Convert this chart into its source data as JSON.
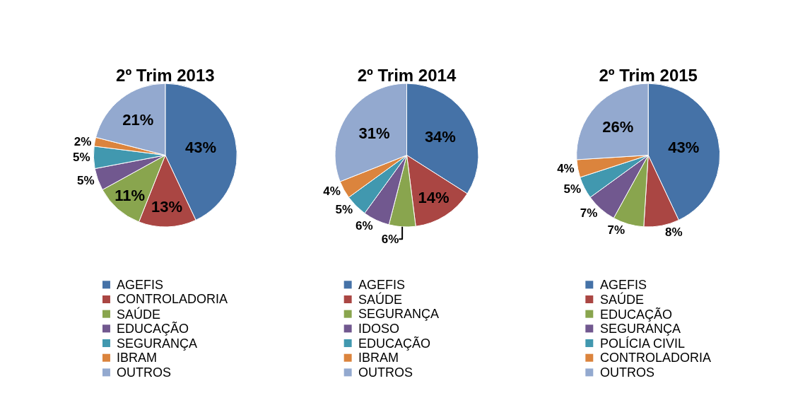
{
  "chart_data": [
    {
      "type": "pie",
      "title": "2º Trim 2013",
      "categories": [
        "AGEFIS",
        "CONTROLADORIA",
        "SAÚDE",
        "EDUCAÇÃO",
        "SEGURANÇA",
        "IBRAM",
        "OUTROS"
      ],
      "values": [
        43,
        13,
        11,
        5,
        5,
        2,
        21
      ],
      "value_labels": [
        "43%",
        "13%",
        "11%",
        "5%",
        "5%",
        "2%",
        "21%"
      ],
      "colors": [
        "#4572a7",
        "#aa4643",
        "#89a54e",
        "#71588f",
        "#4198af",
        "#db843d",
        "#93a9cf"
      ],
      "legend": "bottom"
    },
    {
      "type": "pie",
      "title": "2º Trim 2014",
      "categories": [
        "AGEFIS",
        "SAÚDE",
        "SEGURANÇA",
        "IDOSO",
        "EDUCAÇÃO",
        "IBRAM",
        "OUTROS"
      ],
      "values": [
        34,
        14,
        6,
        6,
        5,
        4,
        31
      ],
      "value_labels": [
        "34%",
        "14%",
        "6%",
        "6%",
        "5%",
        "4%",
        "31%"
      ],
      "colors": [
        "#4572a7",
        "#aa4643",
        "#89a54e",
        "#71588f",
        "#4198af",
        "#db843d",
        "#93a9cf"
      ],
      "legend": "bottom"
    },
    {
      "type": "pie",
      "title": "2º Trim 2015",
      "categories": [
        "AGEFIS",
        "SAÚDE",
        "EDUCAÇÃO",
        "SEGURANÇA",
        "POLÍCIA CIVIL",
        "CONTROLADORIA",
        "OUTROS"
      ],
      "values": [
        43,
        8,
        7,
        7,
        5,
        4,
        26
      ],
      "value_labels": [
        "43%",
        "8%",
        "7%",
        "7%",
        "5%",
        "4%",
        "26%"
      ],
      "colors": [
        "#4572a7",
        "#aa4643",
        "#89a54e",
        "#71588f",
        "#4198af",
        "#db843d",
        "#93a9cf"
      ],
      "legend": "bottom"
    }
  ]
}
